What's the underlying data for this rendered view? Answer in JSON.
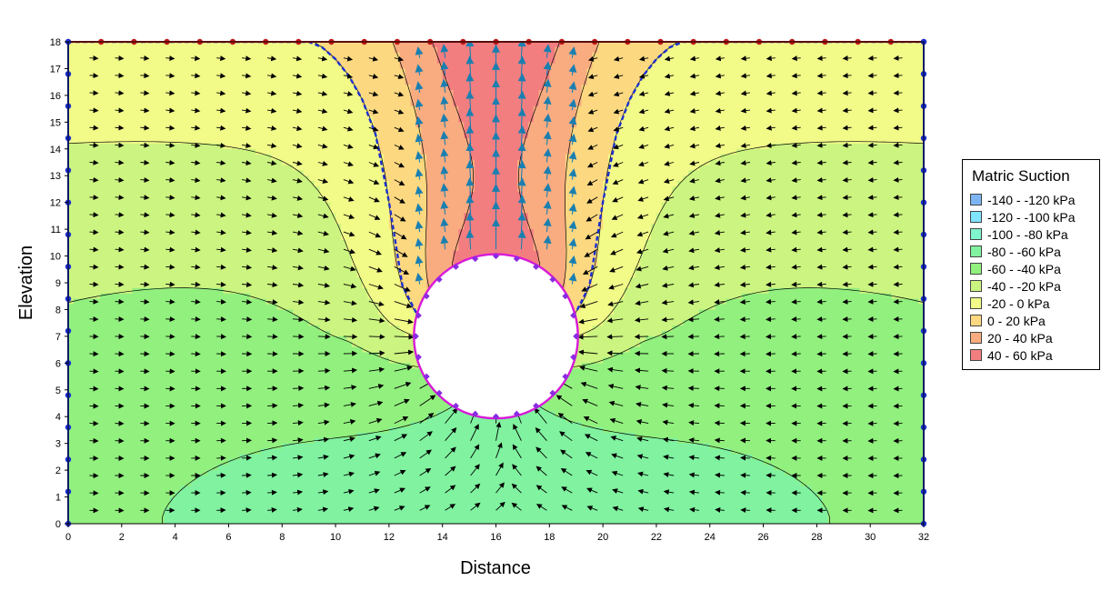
{
  "chart_data": {
    "type": "contour",
    "xlabel": "Distance",
    "ylabel": "Elevation",
    "xlim": [
      0,
      32
    ],
    "ylim": [
      0,
      18
    ],
    "xticks": [
      "0",
      "2",
      "4",
      "6",
      "8",
      "10",
      "12",
      "14",
      "16",
      "18",
      "20",
      "22",
      "24",
      "26",
      "28",
      "30",
      "32"
    ],
    "yticks": [
      "0",
      "1",
      "2",
      "3",
      "4",
      "5",
      "6",
      "7",
      "8",
      "9",
      "10",
      "11",
      "12",
      "13",
      "14",
      "15",
      "16",
      "17",
      "18"
    ],
    "tunnel": {
      "center": [
        16,
        7
      ],
      "radius": 3
    },
    "legend": {
      "title": "Matric Suction",
      "entries": [
        {
          "label": "-140 - -120 kPa",
          "color": "#7eb4f4"
        },
        {
          "label": "-120 - -100 kPa",
          "color": "#80e4ff"
        },
        {
          "label": "-100 - -80 kPa",
          "color": "#80f4cc"
        },
        {
          "label": "-80 - -60 kPa",
          "color": "#80f2a0"
        },
        {
          "label": "-60 - -40 kPa",
          "color": "#92f07e"
        },
        {
          "label": "-40 - -20 kPa",
          "color": "#ccf480"
        },
        {
          "label": "-20 - 0 kPa",
          "color": "#f2fa88"
        },
        {
          "label": "0 - 20 kPa",
          "color": "#fcd880"
        },
        {
          "label": "20 - 40 kPa",
          "color": "#f9ac80"
        },
        {
          "label": "40 - 60 kPa",
          "color": "#f27e80"
        }
      ]
    }
  }
}
